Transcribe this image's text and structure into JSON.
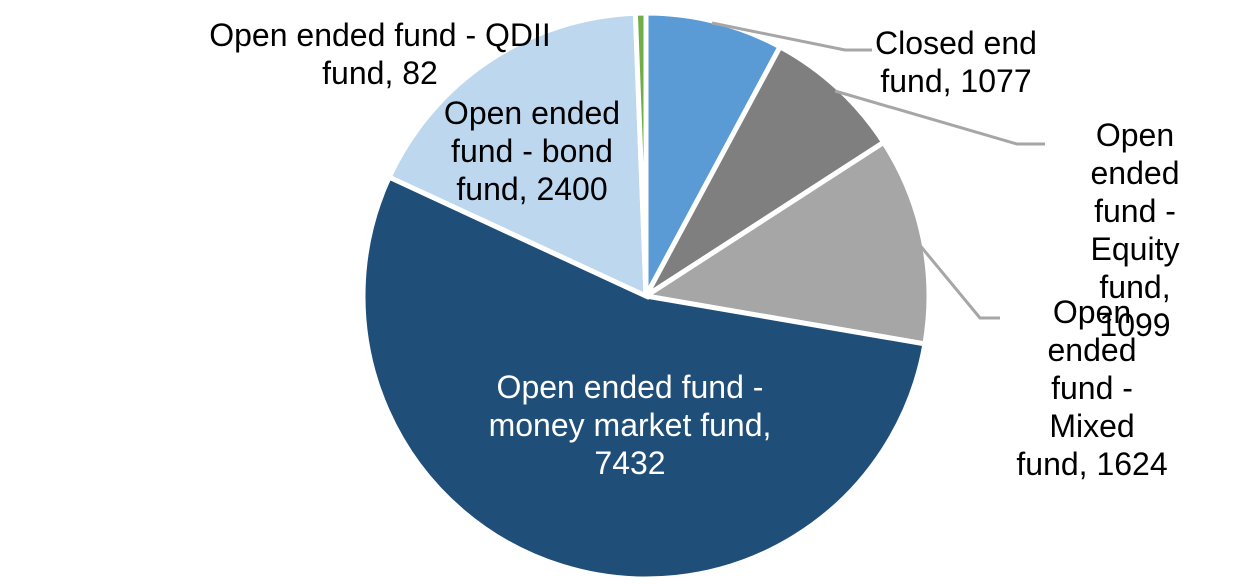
{
  "figure": {
    "background_color": "#FFFFFF",
    "leader_line_color": "#A6A6A6"
  },
  "chart_data": {
    "type": "pie",
    "title": "",
    "legend": "none",
    "direction": "clockwise",
    "start_angle_deg": 0,
    "total": 13714,
    "categories": [
      "Closed end fund",
      "Open ended fund - Equity fund",
      "Open ended fund - Mixed fund",
      "Open ended fund - money market fund",
      "Open ended fund - bond fund",
      "Open ended fund - QDII fund"
    ],
    "values": [
      1077,
      1099,
      1624,
      7432,
      2400,
      82
    ],
    "colors": [
      "#5B9BD5",
      "#7F7F7F",
      "#A6A6A6",
      "#1F4E79",
      "#BDD7EE",
      "#70AD47"
    ],
    "slices": [
      {
        "id": "closed-end-fund",
        "name": "Closed end fund",
        "value": 1077,
        "color": "#5B9BD5",
        "label": "Closed end\nfund, 1077",
        "label_position": "outside"
      },
      {
        "id": "open-ended-fund-equity-fund",
        "name": "Open ended fund - Equity fund",
        "value": 1099,
        "color": "#7F7F7F",
        "label": "Open ended\nfund - Equity\nfund, 1099",
        "label_position": "outside"
      },
      {
        "id": "open-ended-fund-mixed-fund",
        "name": "Open ended fund - Mixed fund",
        "value": 1624,
        "color": "#A6A6A6",
        "label": "Open ended\nfund - Mixed\nfund, 1624",
        "label_position": "outside"
      },
      {
        "id": "open-ended-fund-money-market-fund",
        "name": "Open ended fund - money market fund",
        "value": 7432,
        "color": "#1F4E79",
        "label": "Open ended fund -\nmoney market fund,\n7432",
        "label_position": "inside"
      },
      {
        "id": "open-ended-fund-bond-fund",
        "name": "Open ended fund - bond fund",
        "value": 2400,
        "color": "#BDD7EE",
        "label": "Open ended\nfund - bond\nfund, 2400",
        "label_position": "outside"
      },
      {
        "id": "open-ended-fund-qdii-fund",
        "name": "Open ended fund - QDII fund",
        "value": 82,
        "color": "#70AD47",
        "label": "Open ended fund - QDII\nfund, 82",
        "label_position": "outside"
      }
    ]
  }
}
